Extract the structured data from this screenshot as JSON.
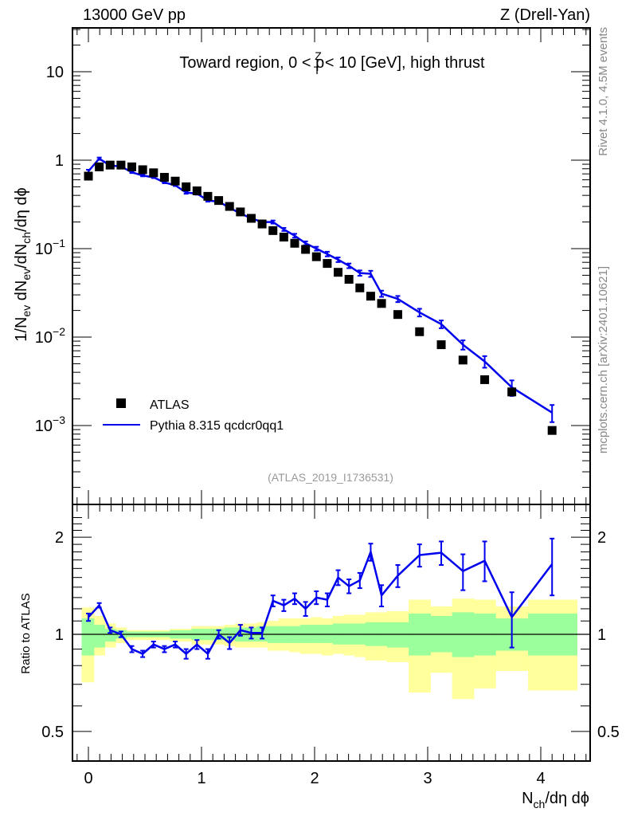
{
  "header": {
    "left": "13000 GeV pp",
    "right": "Z (Drell-Yan)"
  },
  "side_labels": {
    "rivet": "Rivet 4.1.0,  4.5M events",
    "mcplots": "mcplots.cern.ch [arXiv:2401.10621]"
  },
  "chart_data": [
    {
      "type": "scatter",
      "panel": "main",
      "title_parts": {
        "prefix": "Toward region, 0 < p",
        "sup": "Z",
        "sub": "T",
        "suffix": " < 10 [GeV], high thrust"
      },
      "ylabel_parts": [
        "1/N",
        "ev",
        " dN",
        "ev",
        "/dN",
        "ch",
        "/dη dϕ"
      ],
      "xlabel_parts": [
        "N",
        "ch",
        "/dη dϕ"
      ],
      "yscale": "log",
      "ylim": [
        0.0001,
        30
      ],
      "xlim": [
        -0.14,
        4.44
      ],
      "yticks": [
        {
          "value": 10,
          "label": "10",
          "exp": ""
        },
        {
          "value": 1,
          "label": "1",
          "exp": ""
        },
        {
          "value": 0.1,
          "label": "10",
          "exp": "−1"
        },
        {
          "value": 0.01,
          "label": "10",
          "exp": "−2"
        },
        {
          "value": 0.001,
          "label": "10",
          "exp": "−3"
        }
      ],
      "xticks": [
        0,
        1,
        2,
        3,
        4
      ],
      "legend": {
        "placement": "bottom-left",
        "entries": [
          {
            "name": "ATLAS",
            "style": "square-marker",
            "color": "#000000"
          },
          {
            "name": "Pythia 8.315 qcdcr0qq1",
            "style": "line",
            "color": "#0000ee"
          }
        ]
      },
      "analysis_id": "(ATLAS_2019_I1736531)",
      "series": [
        {
          "name": "ATLAS",
          "x": [
            0.0,
            0.096,
            0.192,
            0.288,
            0.384,
            0.48,
            0.576,
            0.672,
            0.768,
            0.864,
            0.96,
            1.056,
            1.152,
            1.248,
            1.344,
            1.44,
            1.536,
            1.632,
            1.728,
            1.824,
            1.92,
            2.016,
            2.112,
            2.208,
            2.304,
            2.4,
            2.496,
            2.592,
            2.736,
            2.928,
            3.12,
            3.312,
            3.504,
            3.744,
            4.1
          ],
          "y": [
            0.66,
            0.84,
            0.88,
            0.88,
            0.84,
            0.78,
            0.72,
            0.64,
            0.58,
            0.5,
            0.45,
            0.39,
            0.35,
            0.3,
            0.26,
            0.22,
            0.19,
            0.16,
            0.135,
            0.115,
            0.098,
            0.081,
            0.068,
            0.054,
            0.045,
            0.036,
            0.029,
            0.024,
            0.018,
            0.0115,
            0.0082,
            0.0055,
            0.0033,
            0.0024,
            0.00088
          ]
        },
        {
          "name": "Pythia 8.315 qcdcr0qq1",
          "x": [
            0.0,
            0.096,
            0.192,
            0.288,
            0.384,
            0.48,
            0.576,
            0.672,
            0.768,
            0.864,
            0.96,
            1.056,
            1.152,
            1.248,
            1.344,
            1.44,
            1.536,
            1.632,
            1.728,
            1.824,
            1.92,
            2.016,
            2.112,
            2.208,
            2.304,
            2.4,
            2.496,
            2.592,
            2.736,
            2.928,
            3.12,
            3.312,
            3.504,
            3.744,
            4.1
          ],
          "y": [
            0.75,
            1.04,
            0.87,
            0.85,
            0.73,
            0.67,
            0.64,
            0.56,
            0.52,
            0.43,
            0.42,
            0.35,
            0.34,
            0.29,
            0.25,
            0.22,
            0.2,
            0.2,
            0.165,
            0.14,
            0.115,
            0.1,
            0.087,
            0.075,
            0.064,
            0.053,
            0.052,
            0.031,
            0.027,
            0.019,
            0.014,
            0.0082,
            0.0053,
            0.0027,
            0.0014
          ],
          "yerr_rel": [
            0.04,
            0.03,
            0.02,
            0.02,
            0.02,
            0.02,
            0.02,
            0.02,
            0.02,
            0.03,
            0.03,
            0.03,
            0.03,
            0.03,
            0.03,
            0.04,
            0.04,
            0.04,
            0.04,
            0.05,
            0.05,
            0.05,
            0.06,
            0.06,
            0.06,
            0.07,
            0.08,
            0.08,
            0.08,
            0.1,
            0.1,
            0.12,
            0.15,
            0.2,
            0.22
          ]
        }
      ]
    },
    {
      "type": "line",
      "panel": "ratio",
      "ylabel": "Ratio to ATLAS",
      "yscale": "log",
      "ylim": [
        0.41,
        2.4
      ],
      "yticks": [
        {
          "value": 2,
          "label": "2"
        },
        {
          "value": 1,
          "label": "1"
        },
        {
          "value": 0.5,
          "label": "0.5"
        }
      ],
      "reference_line": 1,
      "bands": {
        "edges": [
          -0.06,
          0.048,
          0.144,
          0.24,
          0.336,
          0.432,
          0.528,
          0.624,
          0.72,
          0.816,
          0.912,
          1.008,
          1.104,
          1.2,
          1.296,
          1.392,
          1.488,
          1.584,
          1.68,
          1.776,
          1.872,
          1.968,
          2.064,
          2.16,
          2.256,
          2.352,
          2.448,
          2.544,
          2.64,
          2.832,
          3.024,
          3.216,
          3.408,
          3.6,
          3.888,
          4.32
        ],
        "inner_lo": [
          0.86,
          0.91,
          0.95,
          0.97,
          0.98,
          0.98,
          0.98,
          0.98,
          0.97,
          0.97,
          0.96,
          0.96,
          0.96,
          0.96,
          0.95,
          0.95,
          0.95,
          0.94,
          0.94,
          0.94,
          0.94,
          0.94,
          0.94,
          0.93,
          0.93,
          0.93,
          0.92,
          0.92,
          0.91,
          0.86,
          0.88,
          0.85,
          0.86,
          0.89,
          0.86
        ],
        "inner_hi": [
          1.12,
          1.07,
          1.04,
          1.03,
          1.02,
          1.02,
          1.02,
          1.02,
          1.03,
          1.03,
          1.04,
          1.04,
          1.04,
          1.05,
          1.05,
          1.05,
          1.06,
          1.06,
          1.06,
          1.06,
          1.07,
          1.07,
          1.07,
          1.08,
          1.08,
          1.08,
          1.09,
          1.09,
          1.09,
          1.16,
          1.14,
          1.17,
          1.16,
          1.12,
          1.16
        ],
        "outer_lo": [
          0.71,
          0.86,
          0.91,
          0.94,
          0.96,
          0.96,
          0.96,
          0.96,
          0.95,
          0.95,
          0.93,
          0.93,
          0.93,
          0.92,
          0.91,
          0.91,
          0.91,
          0.89,
          0.89,
          0.88,
          0.87,
          0.87,
          0.86,
          0.87,
          0.86,
          0.85,
          0.83,
          0.83,
          0.82,
          0.66,
          0.76,
          0.63,
          0.68,
          0.77,
          0.67
        ],
        "outer_hi": [
          1.21,
          1.14,
          1.08,
          1.05,
          1.03,
          1.03,
          1.03,
          1.03,
          1.04,
          1.04,
          1.06,
          1.06,
          1.06,
          1.07,
          1.08,
          1.08,
          1.09,
          1.1,
          1.12,
          1.12,
          1.12,
          1.13,
          1.12,
          1.14,
          1.15,
          1.15,
          1.17,
          1.17,
          1.18,
          1.28,
          1.22,
          1.29,
          1.28,
          1.22,
          1.28
        ]
      },
      "series": [
        {
          "name": "Pythia 8.315 qcdcr0qq1 / ATLAS",
          "x": [
            0.0,
            0.096,
            0.192,
            0.288,
            0.384,
            0.48,
            0.576,
            0.672,
            0.768,
            0.864,
            0.96,
            1.056,
            1.152,
            1.248,
            1.344,
            1.44,
            1.536,
            1.632,
            1.728,
            1.824,
            1.92,
            2.016,
            2.112,
            2.208,
            2.304,
            2.4,
            2.496,
            2.592,
            2.736,
            2.928,
            3.12,
            3.312,
            3.504,
            3.744,
            4.1
          ],
          "y": [
            1.13,
            1.23,
            1.03,
            1.0,
            0.9,
            0.87,
            0.93,
            0.9,
            0.93,
            0.87,
            0.93,
            0.87,
            1.0,
            0.94,
            1.03,
            1.01,
            1.01,
            1.27,
            1.23,
            1.29,
            1.2,
            1.3,
            1.28,
            1.5,
            1.41,
            1.47,
            1.8,
            1.32,
            1.52,
            1.76,
            1.79,
            1.57,
            1.69,
            1.13,
            1.65
          ],
          "yerr_lo": [
            0.03,
            0.02,
            0.02,
            0.02,
            0.02,
            0.02,
            0.02,
            0.02,
            0.02,
            0.03,
            0.03,
            0.03,
            0.03,
            0.04,
            0.04,
            0.04,
            0.04,
            0.05,
            0.05,
            0.05,
            0.06,
            0.06,
            0.06,
            0.08,
            0.07,
            0.08,
            0.11,
            0.1,
            0.12,
            0.14,
            0.15,
            0.2,
            0.23,
            0.22,
            0.33
          ],
          "yerr_hi": [
            0.03,
            0.02,
            0.02,
            0.02,
            0.02,
            0.02,
            0.02,
            0.02,
            0.02,
            0.03,
            0.03,
            0.03,
            0.03,
            0.04,
            0.04,
            0.04,
            0.04,
            0.05,
            0.05,
            0.05,
            0.06,
            0.06,
            0.06,
            0.08,
            0.07,
            0.08,
            0.11,
            0.1,
            0.12,
            0.14,
            0.15,
            0.2,
            0.25,
            0.22,
            0.33
          ]
        }
      ]
    }
  ],
  "colors": {
    "atlas": "#000000",
    "pythia": "#0000ee",
    "band_inner": "#9bff9b",
    "band_outer": "#ffff9b",
    "axis": "#000000",
    "side_text": "#888888",
    "analysis_text": "#999999"
  }
}
